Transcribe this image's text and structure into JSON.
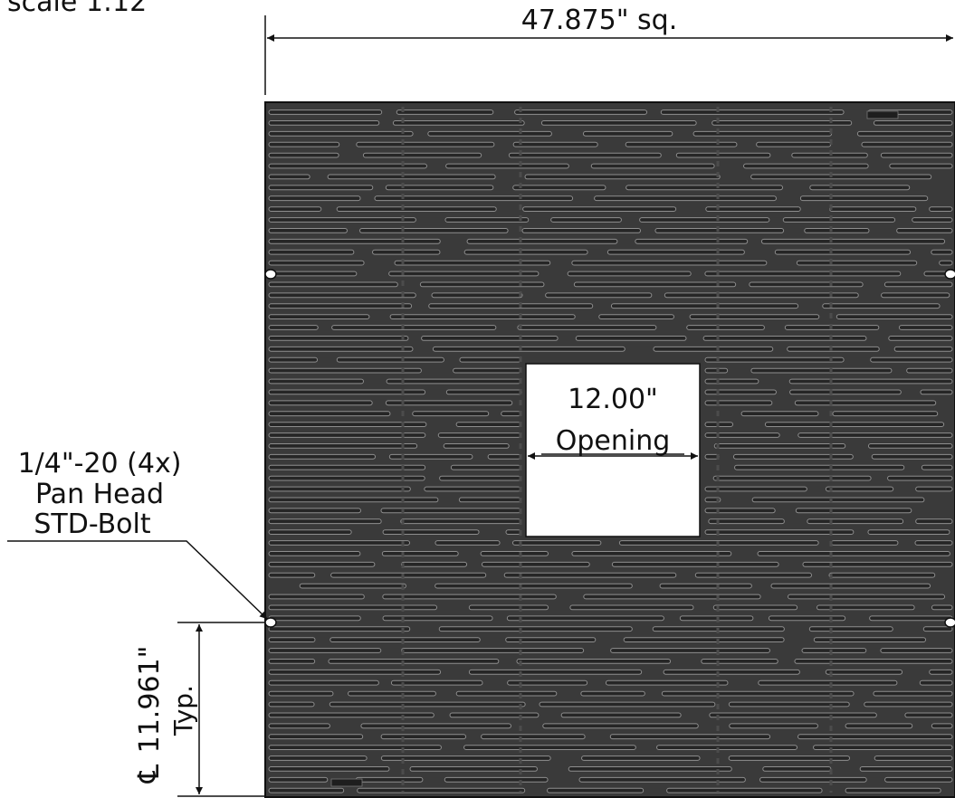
{
  "scale_label": "scale 1:12",
  "overall_dimension": "47.875\" sq.",
  "opening": {
    "value": "12.00\"",
    "label": "Opening"
  },
  "bolt_callout": {
    "line1": "1/4\"-20 (4x)",
    "line2": "Pan Head",
    "line3": "STD-Bolt"
  },
  "bolt_spacing": {
    "centerline_symbol": "℄",
    "value": "11.961\"",
    "note": "Typ."
  },
  "colors": {
    "grate": "#3a3a3a",
    "slot": "#262626",
    "slot_edge": "#8e8e8e",
    "line": "#111111",
    "background": "#ffffff"
  }
}
